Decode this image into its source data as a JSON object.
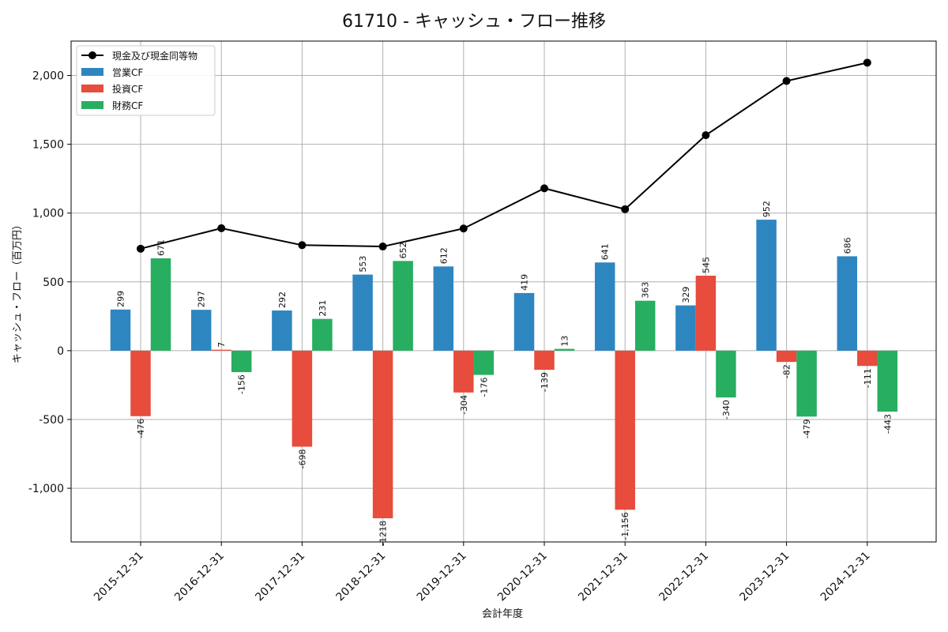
{
  "chart_data": {
    "type": "bar",
    "title": "61710 - キャッシュ・フロー推移",
    "xlabel": "会計年度",
    "ylabel": "キャッシュ・フロー（百万円）",
    "categories": [
      "2015-12-31",
      "2016-12-31",
      "2017-12-31",
      "2018-12-31",
      "2019-12-31",
      "2020-12-31",
      "2021-12-31",
      "2022-12-31",
      "2023-12-31",
      "2024-12-31"
    ],
    "ylim": [
      -1390,
      2250
    ],
    "yticks": [
      -1000,
      -500,
      0,
      500,
      1000,
      1500,
      2000
    ],
    "ytick_labels": [
      "-1,000",
      "-500",
      "0",
      "500",
      "1,000",
      "1,500",
      "2,000"
    ],
    "grid": true,
    "legend_position": "top-left",
    "series": [
      {
        "name": "営業CF",
        "kind": "bar",
        "color": "#2e86c1",
        "values": [
          299,
          297,
          292,
          553,
          612,
          419,
          641,
          329,
          952,
          686
        ],
        "labels": [
          "299",
          "297",
          "292",
          "553",
          "612",
          "419",
          "641",
          "329",
          "952",
          "686"
        ]
      },
      {
        "name": "投資CF",
        "kind": "bar",
        "color": "#e74c3c",
        "values": [
          -476,
          7,
          -698,
          -1218,
          -304,
          -139,
          -1156,
          545,
          -82,
          -111
        ],
        "labels": [
          "-476",
          "7",
          "-698",
          "-1218",
          "-304",
          "-139",
          "-1,156",
          "545",
          "-82",
          "-111"
        ]
      },
      {
        "name": "財務CF",
        "kind": "bar",
        "color": "#27ae60",
        "values": [
          671,
          -156,
          231,
          652,
          -176,
          13,
          363,
          -340,
          -479,
          -443
        ],
        "labels": [
          "671",
          "-156",
          "231",
          "652",
          "-176",
          "13",
          "363",
          "-340",
          "-479",
          "-443"
        ]
      },
      {
        "name": "現金及び現金同等物",
        "kind": "line",
        "color": "#000000",
        "values": [
          741,
          890,
          767,
          757,
          888,
          1180,
          1028,
          1566,
          1960,
          2093
        ]
      }
    ]
  }
}
